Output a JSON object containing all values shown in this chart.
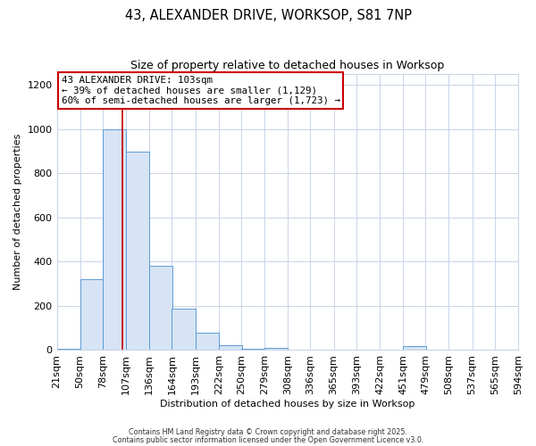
{
  "title": "43, ALEXANDER DRIVE, WORKSOP, S81 7NP",
  "subtitle": "Size of property relative to detached houses in Worksop",
  "xlabel": "Distribution of detached houses by size in Worksop",
  "ylabel": "Number of detached properties",
  "bar_left_edges": [
    21,
    50,
    78,
    107,
    136,
    164,
    193,
    222,
    250,
    279,
    308,
    336,
    365,
    393,
    422,
    451,
    479,
    508,
    537,
    565
  ],
  "bar_heights": [
    5,
    320,
    1000,
    900,
    380,
    185,
    75,
    22,
    5,
    8,
    0,
    0,
    0,
    0,
    0,
    15,
    0,
    0,
    0,
    0
  ],
  "bin_width": 29,
  "bar_color": "#d6e4f5",
  "bar_edge_color": "#5b9bd5",
  "property_line_x": 103,
  "property_label": "43 ALEXANDER DRIVE: 103sqm",
  "annotation_line1": "← 39% of detached houses are smaller (1,129)",
  "annotation_line2": "60% of semi-detached houses are larger (1,723) →",
  "annotation_box_color": "#cc0000",
  "vline_color": "#cc0000",
  "tick_labels": [
    "21sqm",
    "50sqm",
    "78sqm",
    "107sqm",
    "136sqm",
    "164sqm",
    "193sqm",
    "222sqm",
    "250sqm",
    "279sqm",
    "308sqm",
    "336sqm",
    "365sqm",
    "393sqm",
    "422sqm",
    "451sqm",
    "479sqm",
    "508sqm",
    "537sqm",
    "565sqm",
    "594sqm"
  ],
  "ylim": [
    0,
    1250
  ],
  "yticks": [
    0,
    200,
    400,
    600,
    800,
    1000,
    1200
  ],
  "footer1": "Contains HM Land Registry data © Crown copyright and database right 2025.",
  "footer2": "Contains public sector information licensed under the Open Government Licence v3.0.",
  "background_color": "#ffffff",
  "grid_color": "#c8d4e8"
}
